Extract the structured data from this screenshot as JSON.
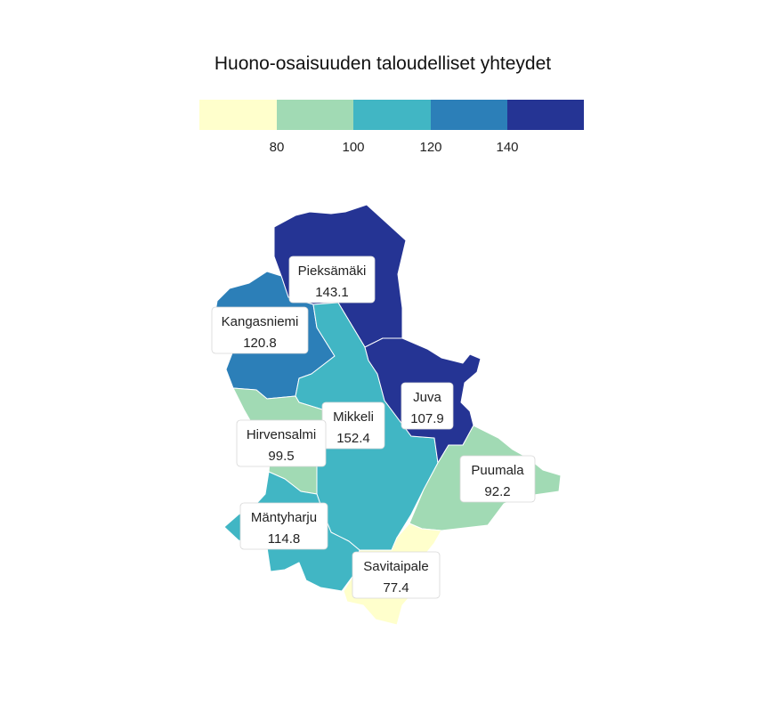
{
  "title": "Huono-osaisuuden taloudelliset yhteydet",
  "legend": {
    "colors": [
      "#ffffcc",
      "#a1dab4",
      "#41b6c4",
      "#2c7fb8",
      "#253494"
    ],
    "breaks": [
      80,
      100,
      120,
      140
    ],
    "tick_labels": [
      "80",
      "100",
      "120",
      "140"
    ]
  },
  "chart_data": {
    "type": "choropleth",
    "title": "Huono-osaisuuden taloudelliset yhteydet",
    "bins": [
      {
        "max": 80,
        "color": "#ffffcc"
      },
      {
        "min": 80,
        "max": 100,
        "color": "#a1dab4"
      },
      {
        "min": 100,
        "max": 120,
        "color": "#41b6c4"
      },
      {
        "min": 120,
        "max": 140,
        "color": "#2c7fb8"
      },
      {
        "min": 140,
        "color": "#253494"
      }
    ],
    "regions": [
      {
        "name": "Pieksämäki",
        "value": 143.1,
        "value_label": "143.1"
      },
      {
        "name": "Kangasniemi",
        "value": 120.8,
        "value_label": "120.8"
      },
      {
        "name": "Juva",
        "value": 107.9,
        "value_label": "107.9"
      },
      {
        "name": "Mikkeli",
        "value": 152.4,
        "value_label": "152.4"
      },
      {
        "name": "Hirvensalmi",
        "value": 99.5,
        "value_label": "99.5"
      },
      {
        "name": "Puumala",
        "value": 92.2,
        "value_label": "92.2"
      },
      {
        "name": "Mäntyharju",
        "value": 114.8,
        "value_label": "114.8"
      },
      {
        "name": "Savitaipale",
        "value": 77.4,
        "value_label": "77.4"
      }
    ]
  }
}
